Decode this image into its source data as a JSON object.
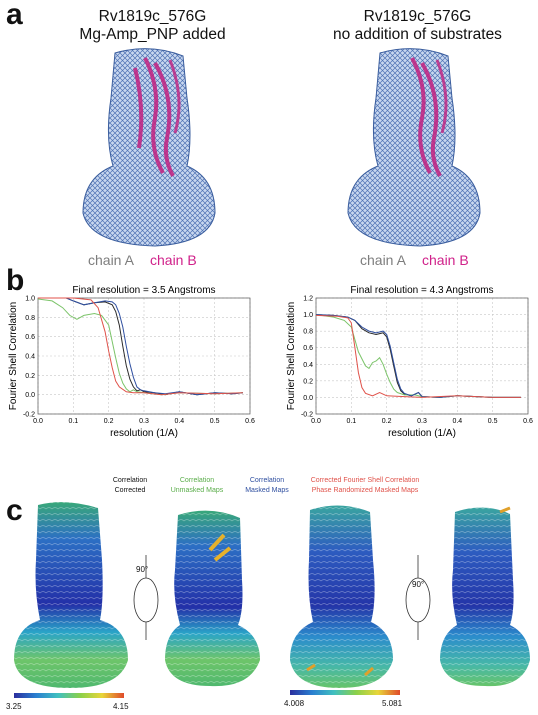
{
  "panels": {
    "a": "a",
    "b": "b",
    "c": "c"
  },
  "panel_a": {
    "left": {
      "title1": "Rv1819c_576G",
      "title2": "Mg-Amp_PNP added",
      "chain_a": "chain A",
      "chain_b": "chain B"
    },
    "right": {
      "title1": "Rv1819c_576G",
      "title2": "no addition of substrates",
      "chain_a": "chain A",
      "chain_b": "chain B"
    }
  },
  "chart_data": [
    {
      "type": "line",
      "title": "Final resolution =    3.5 Angstroms",
      "xlabel": "resolution (1/A)",
      "ylabel": "Fourier Shell Correlation",
      "xlim": [
        0.0,
        0.6
      ],
      "ylim": [
        -0.2,
        1.0
      ],
      "xticks": [
        "0.0",
        "0.1",
        "0.2",
        "0.3",
        "0.4",
        "0.5",
        "0.6"
      ],
      "yticks": [
        "-0.2",
        "0.0",
        "0.2",
        "0.4",
        "0.6",
        "0.8",
        "1.0"
      ],
      "grid": true,
      "series": [
        {
          "color": "#2a2a2a",
          "x": [
            0.0,
            0.05,
            0.08,
            0.1,
            0.13,
            0.16,
            0.19,
            0.21,
            0.22,
            0.23,
            0.24,
            0.25,
            0.26,
            0.27,
            0.28,
            0.29,
            0.3,
            0.33,
            0.36,
            0.4,
            0.45,
            0.5,
            0.55,
            0.58
          ],
          "y": [
            1.0,
            1.0,
            1.0,
            0.97,
            0.93,
            0.95,
            0.96,
            0.93,
            0.86,
            0.72,
            0.5,
            0.3,
            0.16,
            0.08,
            0.04,
            0.05,
            0.03,
            0.02,
            0.0,
            0.03,
            0.0,
            0.02,
            0.01,
            0.02
          ]
        },
        {
          "color": "#7cc46a",
          "x": [
            0.0,
            0.04,
            0.07,
            0.09,
            0.11,
            0.13,
            0.16,
            0.18,
            0.2,
            0.21,
            0.22,
            0.23,
            0.24,
            0.25,
            0.26,
            0.27,
            0.28,
            0.3,
            0.35,
            0.4,
            0.5,
            0.58
          ],
          "y": [
            0.99,
            0.97,
            0.9,
            0.82,
            0.78,
            0.82,
            0.84,
            0.82,
            0.72,
            0.55,
            0.38,
            0.22,
            0.12,
            0.06,
            0.03,
            0.05,
            0.03,
            0.02,
            0.0,
            0.02,
            0.01,
            0.02
          ]
        },
        {
          "color": "#2f4fa0",
          "x": [
            0.0,
            0.05,
            0.08,
            0.1,
            0.13,
            0.16,
            0.19,
            0.21,
            0.22,
            0.23,
            0.24,
            0.25,
            0.26,
            0.27,
            0.28,
            0.29,
            0.3,
            0.33,
            0.36,
            0.4,
            0.45,
            0.5,
            0.55,
            0.58
          ],
          "y": [
            1.0,
            1.0,
            1.0,
            0.97,
            0.93,
            0.95,
            0.97,
            0.96,
            0.93,
            0.84,
            0.7,
            0.5,
            0.32,
            0.18,
            0.08,
            0.05,
            0.04,
            0.02,
            0.01,
            0.03,
            0.0,
            0.02,
            0.01,
            0.02
          ]
        },
        {
          "color": "#e0524a",
          "x": [
            0.0,
            0.1,
            0.15,
            0.17,
            0.19,
            0.2,
            0.21,
            0.22,
            0.23,
            0.25,
            0.27,
            0.3,
            0.35,
            0.4,
            0.5,
            0.58
          ],
          "y": [
            1.0,
            1.0,
            0.98,
            0.9,
            0.65,
            0.45,
            0.28,
            0.14,
            0.08,
            0.03,
            0.02,
            0.02,
            0.0,
            0.02,
            0.01,
            0.02
          ]
        }
      ]
    },
    {
      "type": "line",
      "title": "Final resolution =    4.3 Angstroms",
      "xlabel": "resolution (1/A)",
      "ylabel": "Fourier Shell Correlation",
      "xlim": [
        0.0,
        0.6
      ],
      "ylim": [
        -0.2,
        1.2
      ],
      "xticks": [
        "0.0",
        "0.1",
        "0.2",
        "0.3",
        "0.4",
        "0.5",
        "0.6"
      ],
      "yticks": [
        "-0.2",
        "0.0",
        "0.2",
        "0.4",
        "0.6",
        "0.8",
        "1.0",
        "1.2"
      ],
      "grid": true,
      "series": [
        {
          "color": "#2a2a2a",
          "x": [
            0.0,
            0.05,
            0.09,
            0.11,
            0.13,
            0.15,
            0.17,
            0.19,
            0.2,
            0.21,
            0.22,
            0.23,
            0.24,
            0.25,
            0.27,
            0.29,
            0.3,
            0.35,
            0.4,
            0.5,
            0.58
          ],
          "y": [
            1.0,
            0.99,
            0.97,
            0.93,
            0.83,
            0.78,
            0.76,
            0.78,
            0.73,
            0.58,
            0.38,
            0.18,
            0.08,
            0.04,
            0.02,
            0.06,
            0.01,
            0.0,
            0.02,
            0.0,
            0.0
          ]
        },
        {
          "color": "#7cc46a",
          "x": [
            0.0,
            0.05,
            0.08,
            0.1,
            0.12,
            0.14,
            0.15,
            0.16,
            0.17,
            0.18,
            0.19,
            0.2,
            0.21,
            0.22,
            0.23,
            0.25,
            0.28,
            0.3,
            0.35,
            0.4,
            0.5,
            0.58
          ],
          "y": [
            1.0,
            0.97,
            0.93,
            0.85,
            0.55,
            0.38,
            0.35,
            0.42,
            0.44,
            0.48,
            0.4,
            0.28,
            0.18,
            0.1,
            0.06,
            0.03,
            0.03,
            0.01,
            0.0,
            0.02,
            0.0,
            0.0
          ]
        },
        {
          "color": "#2f4fa0",
          "x": [
            0.0,
            0.05,
            0.09,
            0.11,
            0.13,
            0.15,
            0.17,
            0.19,
            0.2,
            0.21,
            0.22,
            0.23,
            0.24,
            0.25,
            0.27,
            0.29,
            0.3,
            0.35,
            0.4,
            0.5,
            0.58
          ],
          "y": [
            1.0,
            0.99,
            0.97,
            0.93,
            0.85,
            0.8,
            0.78,
            0.8,
            0.76,
            0.62,
            0.42,
            0.22,
            0.1,
            0.05,
            0.02,
            0.06,
            0.01,
            0.0,
            0.02,
            0.0,
            0.0
          ]
        },
        {
          "color": "#e0524a",
          "x": [
            0.0,
            0.06,
            0.09,
            0.1,
            0.11,
            0.12,
            0.13,
            0.14,
            0.16,
            0.18,
            0.2,
            0.25,
            0.3,
            0.4,
            0.5,
            0.58
          ],
          "y": [
            0.99,
            0.98,
            0.96,
            0.9,
            0.6,
            0.3,
            0.12,
            0.05,
            0.02,
            0.06,
            0.02,
            0.01,
            0.0,
            0.02,
            0.0,
            0.0
          ]
        }
      ]
    }
  ],
  "legend": [
    {
      "line1": "Correlation",
      "line2": "Corrected",
      "color": "#111111"
    },
    {
      "line1": "Correlation",
      "line2": "Unmasked Maps",
      "color": "#5aad4a"
    },
    {
      "line1": "Correlation",
      "line2": "Masked Maps",
      "color": "#2f4fa0"
    },
    {
      "line1": "Corrected Fourier Shell  Correlation",
      "line2": "Phase Randomized Masked Maps",
      "color": "#e0524a"
    }
  ],
  "panel_c": {
    "left": {
      "rotation": "90°",
      "cb_min": "3.25",
      "cb_max": "4.15"
    },
    "right": {
      "rotation": "90°",
      "cb_min": "4.008",
      "cb_max": "5.081"
    }
  }
}
